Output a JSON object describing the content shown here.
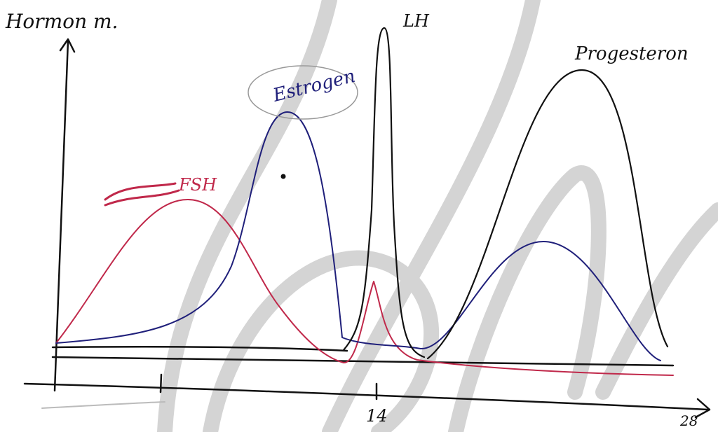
{
  "header": {
    "y_axis_label": "Hormon m."
  },
  "curves": {
    "fsh": "FSH",
    "estrogen": "Estrogen",
    "lh": "LH",
    "progesterone": "Progesteron"
  },
  "x_axis": {
    "mid_label": "14",
    "end_label": "28"
  }
}
